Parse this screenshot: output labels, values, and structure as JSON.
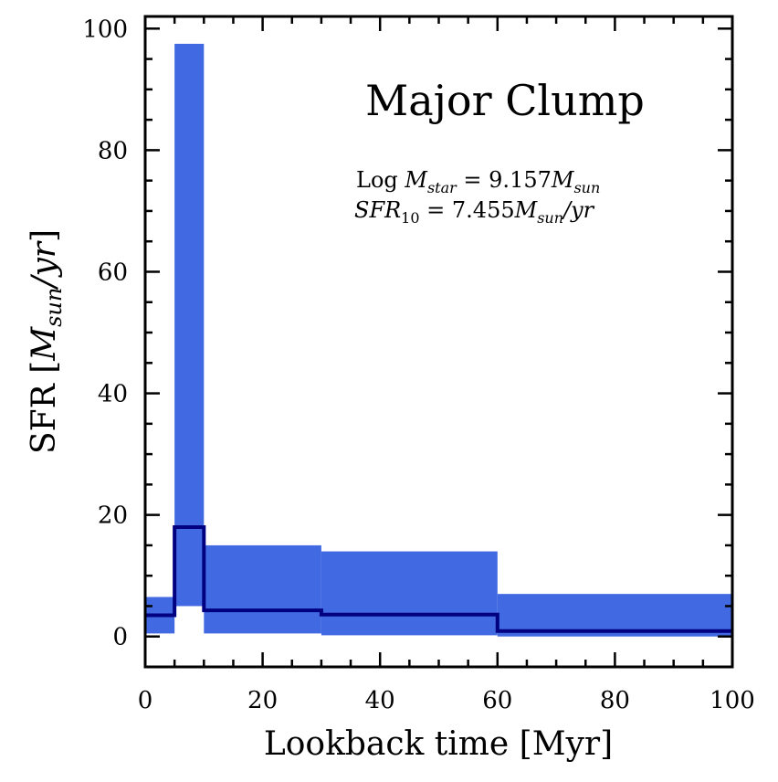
{
  "chart_data": {
    "type": "area",
    "title": "Major Clump",
    "xlabel": "Lookback time [Myr]",
    "ylabel_main": "SFR",
    "ylabel_unit_base": "M",
    "ylabel_unit_sub": "sun",
    "ylabel_unit_tail": "/yr",
    "xlim": [
      0,
      100
    ],
    "ylim": [
      -5,
      102
    ],
    "xticks": [
      0,
      20,
      40,
      60,
      80,
      100
    ],
    "yticks": [
      0,
      20,
      40,
      60,
      80,
      100
    ],
    "xminor_step": 5,
    "yminor_step": 5,
    "band_color": "#4169e1",
    "line_color": "#000080",
    "bins": [
      {
        "x0": 0,
        "x1": 5,
        "low": 0.5,
        "high": 6.5,
        "sfr": 3.5
      },
      {
        "x0": 5,
        "x1": 10,
        "low": 5.0,
        "high": 97.5,
        "sfr": 18.0
      },
      {
        "x0": 10,
        "x1": 30,
        "low": 0.5,
        "high": 15.0,
        "sfr": 4.3
      },
      {
        "x0": 30,
        "x1": 60,
        "low": 0.2,
        "high": 14.0,
        "sfr": 3.6
      },
      {
        "x0": 60,
        "x1": 100,
        "low": 0.0,
        "high": 7.0,
        "sfr": 0.9
      }
    ],
    "annotations": {
      "mass": {
        "prefix": "Log ",
        "var": "M",
        "sub": "star",
        "mid": " = 9.157",
        "unit": "M",
        "unit_sub": "sun"
      },
      "sfr10": {
        "var": "SFR",
        "sub": "10",
        "mid": " = 7.455",
        "unit": "M",
        "unit_sub": "sun",
        "tail": "/yr"
      }
    }
  }
}
